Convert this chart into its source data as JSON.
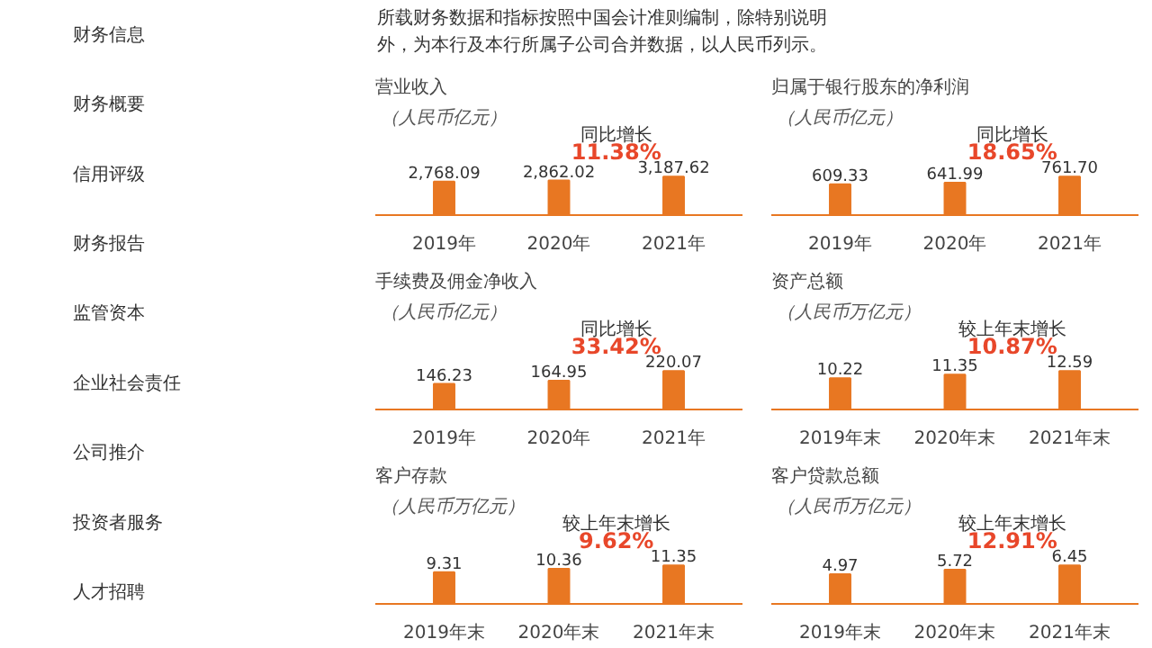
{
  "chart_data": [
    {
      "type": "other",
      "annotations": [
        "财务信息",
        "财务概要",
        "信用评级",
        "财务报告",
        "监管资本",
        "企业社会责任",
        "公司推介",
        "投资者服务",
        "人才招聘"
      ]
    },
    {
      "type": "other",
      "annotations": [
        "所载财务数据和指标按照中国会计准则编制，除特别说明外，为本行及本行所属子公司合并数据，以人民币列示。"
      ]
    },
    {
      "type": "bar",
      "title": "营业收入",
      "subtitle": "（人民币亿元）",
      "categories": [
        "2019年",
        "2020年",
        "2021年"
      ],
      "values": [
        2768.09,
        2862.02,
        3187.62
      ],
      "value_labels": [
        "2,768.09",
        "2,862.02",
        "3,187.62"
      ],
      "color": "#e87722",
      "annotations": [
        "同比增长",
        "11.38%"
      ]
    },
    {
      "type": "bar",
      "title": "归属于银行股东的净利润",
      "subtitle": "（人民币亿元）",
      "categories": [
        "2019年",
        "2020年",
        "2021年"
      ],
      "values": [
        609.33,
        641.99,
        761.7
      ],
      "value_labels": [
        "609.33",
        "641.99",
        "761.70"
      ],
      "color": "#e87722",
      "annotations": [
        "同比增长",
        "18.65%"
      ]
    },
    {
      "type": "bar",
      "title": "手续费及佣金净收入",
      "subtitle": "（人民币亿元）",
      "categories": [
        "2019年",
        "2020年",
        "2021年"
      ],
      "values": [
        146.23,
        164.95,
        220.07
      ],
      "value_labels": [
        "146.23",
        "164.95",
        "220.07"
      ],
      "color": "#e87722",
      "annotations": [
        "同比增长",
        "33.42%"
      ]
    },
    {
      "type": "bar",
      "title": "资产总额",
      "subtitle": "（人民币万亿元）",
      "categories": [
        "2019年末",
        "2020年末",
        "2021年末"
      ],
      "values": [
        10.22,
        11.35,
        12.59
      ],
      "value_labels": [
        "10.22",
        "11.35",
        "12.59"
      ],
      "color": "#e87722",
      "annotations": [
        "较上年末增长",
        "10.87%"
      ]
    },
    {
      "type": "bar",
      "title": "客户存款",
      "subtitle": "（人民币万亿元）",
      "categories": [
        "2019年末",
        "2020年末",
        "2021年末"
      ],
      "values": [
        9.31,
        10.36,
        11.35
      ],
      "value_labels": [
        "9.31",
        "10.36",
        "11.35"
      ],
      "color": "#e87722",
      "annotations": [
        "较上年末增长",
        "9.62%"
      ]
    },
    {
      "type": "bar",
      "title": "客户贷款总额",
      "subtitle": "（人民币万亿元）",
      "categories": [
        "2019年末",
        "2020年末",
        "2021年末"
      ],
      "values": [
        4.97,
        5.72,
        6.45
      ],
      "value_labels": [
        "4.97",
        "5.72",
        "6.45"
      ],
      "color": "#e87722",
      "annotations": [
        "较上年末增长",
        "12.91%"
      ]
    }
  ]
}
